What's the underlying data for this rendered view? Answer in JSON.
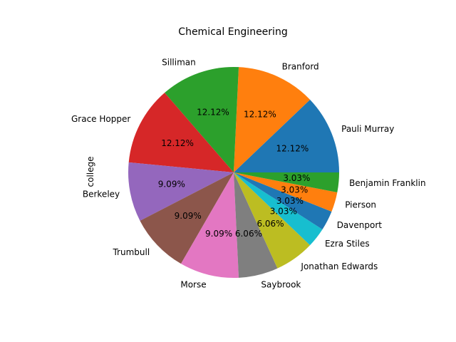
{
  "chart_data": {
    "type": "pie",
    "title": "Chemical Engineering",
    "ylabel": "college",
    "startangle_deg": 0,
    "direction": "counterclockwise",
    "slices": [
      {
        "label": "Pauli Murray",
        "value": 4,
        "pct": "12.12%",
        "color": "#1f77b4"
      },
      {
        "label": "Branford",
        "value": 4,
        "pct": "12.12%",
        "color": "#ff7f0e"
      },
      {
        "label": "Silliman",
        "value": 4,
        "pct": "12.12%",
        "color": "#2ca02c"
      },
      {
        "label": "Grace Hopper",
        "value": 4,
        "pct": "12.12%",
        "color": "#d62728"
      },
      {
        "label": "Berkeley",
        "value": 3,
        "pct": "9.09%",
        "color": "#9467bd"
      },
      {
        "label": "Trumbull",
        "value": 3,
        "pct": "9.09%",
        "color": "#8c564b"
      },
      {
        "label": "Morse",
        "value": 3,
        "pct": "9.09%",
        "color": "#e377c2"
      },
      {
        "label": "Saybrook",
        "value": 2,
        "pct": "6.06%",
        "color": "#7f7f7f"
      },
      {
        "label": "Jonathan Edwards",
        "value": 2,
        "pct": "6.06%",
        "color": "#bcbd22"
      },
      {
        "label": "Ezra Stiles",
        "value": 1,
        "pct": "3.03%",
        "color": "#17becf"
      },
      {
        "label": "Davenport",
        "value": 1,
        "pct": "3.03%",
        "color": "#1f77b4"
      },
      {
        "label": "Pierson",
        "value": 1,
        "pct": "3.03%",
        "color": "#ff7f0e"
      },
      {
        "label": "Benjamin Franklin",
        "value": 1,
        "pct": "3.03%",
        "color": "#2ca02c"
      }
    ]
  }
}
